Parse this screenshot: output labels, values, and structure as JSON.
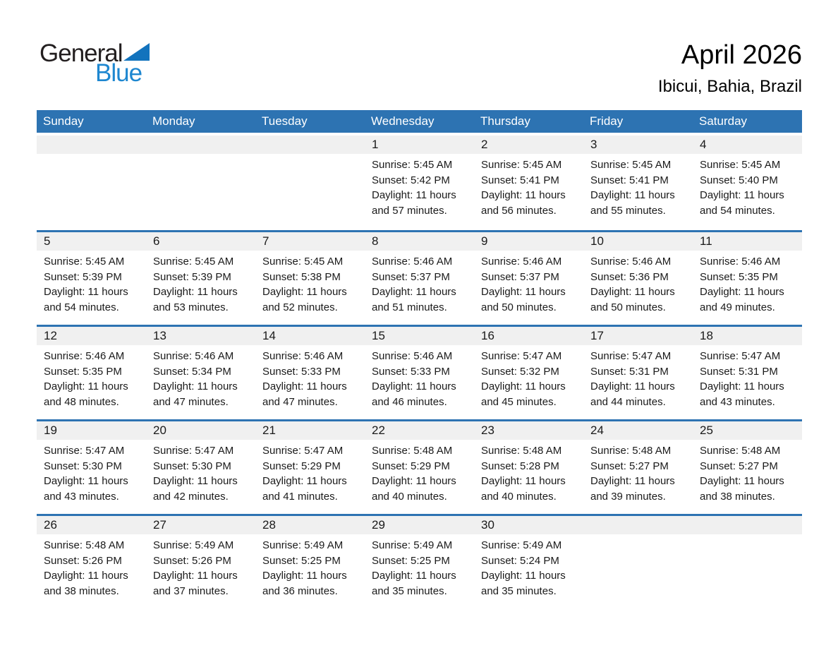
{
  "logo": {
    "part1": "General",
    "part2": "Blue"
  },
  "header": {
    "title": "April 2026",
    "subtitle": "Ibicui, Bahia, Brazil"
  },
  "colors": {
    "header_bg": "#2d73b2",
    "row_divider": "#2d73b2",
    "day_strip_bg": "#f0f0f0",
    "logo_black": "#231f20",
    "logo_blue_text": "#1e87d0",
    "logo_triangle": "#1273bd",
    "header_text": "#ffffff",
    "body_text": "#1a1a1a"
  },
  "calendar": {
    "day_names": [
      "Sunday",
      "Monday",
      "Tuesday",
      "Wednesday",
      "Thursday",
      "Friday",
      "Saturday"
    ],
    "labels": {
      "sunrise": "Sunrise:",
      "sunset": "Sunset:",
      "daylight": "Daylight:"
    },
    "weeks": [
      [
        null,
        null,
        null,
        {
          "date": 1,
          "sunrise": "5:45 AM",
          "sunset": "5:42 PM",
          "daylight": "11 hours and 57 minutes."
        },
        {
          "date": 2,
          "sunrise": "5:45 AM",
          "sunset": "5:41 PM",
          "daylight": "11 hours and 56 minutes."
        },
        {
          "date": 3,
          "sunrise": "5:45 AM",
          "sunset": "5:41 PM",
          "daylight": "11 hours and 55 minutes."
        },
        {
          "date": 4,
          "sunrise": "5:45 AM",
          "sunset": "5:40 PM",
          "daylight": "11 hours and 54 minutes."
        }
      ],
      [
        {
          "date": 5,
          "sunrise": "5:45 AM",
          "sunset": "5:39 PM",
          "daylight": "11 hours and 54 minutes."
        },
        {
          "date": 6,
          "sunrise": "5:45 AM",
          "sunset": "5:39 PM",
          "daylight": "11 hours and 53 minutes."
        },
        {
          "date": 7,
          "sunrise": "5:45 AM",
          "sunset": "5:38 PM",
          "daylight": "11 hours and 52 minutes."
        },
        {
          "date": 8,
          "sunrise": "5:46 AM",
          "sunset": "5:37 PM",
          "daylight": "11 hours and 51 minutes."
        },
        {
          "date": 9,
          "sunrise": "5:46 AM",
          "sunset": "5:37 PM",
          "daylight": "11 hours and 50 minutes."
        },
        {
          "date": 10,
          "sunrise": "5:46 AM",
          "sunset": "5:36 PM",
          "daylight": "11 hours and 50 minutes."
        },
        {
          "date": 11,
          "sunrise": "5:46 AM",
          "sunset": "5:35 PM",
          "daylight": "11 hours and 49 minutes."
        }
      ],
      [
        {
          "date": 12,
          "sunrise": "5:46 AM",
          "sunset": "5:35 PM",
          "daylight": "11 hours and 48 minutes."
        },
        {
          "date": 13,
          "sunrise": "5:46 AM",
          "sunset": "5:34 PM",
          "daylight": "11 hours and 47 minutes."
        },
        {
          "date": 14,
          "sunrise": "5:46 AM",
          "sunset": "5:33 PM",
          "daylight": "11 hours and 47 minutes."
        },
        {
          "date": 15,
          "sunrise": "5:46 AM",
          "sunset": "5:33 PM",
          "daylight": "11 hours and 46 minutes."
        },
        {
          "date": 16,
          "sunrise": "5:47 AM",
          "sunset": "5:32 PM",
          "daylight": "11 hours and 45 minutes."
        },
        {
          "date": 17,
          "sunrise": "5:47 AM",
          "sunset": "5:31 PM",
          "daylight": "11 hours and 44 minutes."
        },
        {
          "date": 18,
          "sunrise": "5:47 AM",
          "sunset": "5:31 PM",
          "daylight": "11 hours and 43 minutes."
        }
      ],
      [
        {
          "date": 19,
          "sunrise": "5:47 AM",
          "sunset": "5:30 PM",
          "daylight": "11 hours and 43 minutes."
        },
        {
          "date": 20,
          "sunrise": "5:47 AM",
          "sunset": "5:30 PM",
          "daylight": "11 hours and 42 minutes."
        },
        {
          "date": 21,
          "sunrise": "5:47 AM",
          "sunset": "5:29 PM",
          "daylight": "11 hours and 41 minutes."
        },
        {
          "date": 22,
          "sunrise": "5:48 AM",
          "sunset": "5:29 PM",
          "daylight": "11 hours and 40 minutes."
        },
        {
          "date": 23,
          "sunrise": "5:48 AM",
          "sunset": "5:28 PM",
          "daylight": "11 hours and 40 minutes."
        },
        {
          "date": 24,
          "sunrise": "5:48 AM",
          "sunset": "5:27 PM",
          "daylight": "11 hours and 39 minutes."
        },
        {
          "date": 25,
          "sunrise": "5:48 AM",
          "sunset": "5:27 PM",
          "daylight": "11 hours and 38 minutes."
        }
      ],
      [
        {
          "date": 26,
          "sunrise": "5:48 AM",
          "sunset": "5:26 PM",
          "daylight": "11 hours and 38 minutes."
        },
        {
          "date": 27,
          "sunrise": "5:49 AM",
          "sunset": "5:26 PM",
          "daylight": "11 hours and 37 minutes."
        },
        {
          "date": 28,
          "sunrise": "5:49 AM",
          "sunset": "5:25 PM",
          "daylight": "11 hours and 36 minutes."
        },
        {
          "date": 29,
          "sunrise": "5:49 AM",
          "sunset": "5:25 PM",
          "daylight": "11 hours and 35 minutes."
        },
        {
          "date": 30,
          "sunrise": "5:49 AM",
          "sunset": "5:24 PM",
          "daylight": "11 hours and 35 minutes."
        },
        null,
        null
      ]
    ]
  }
}
